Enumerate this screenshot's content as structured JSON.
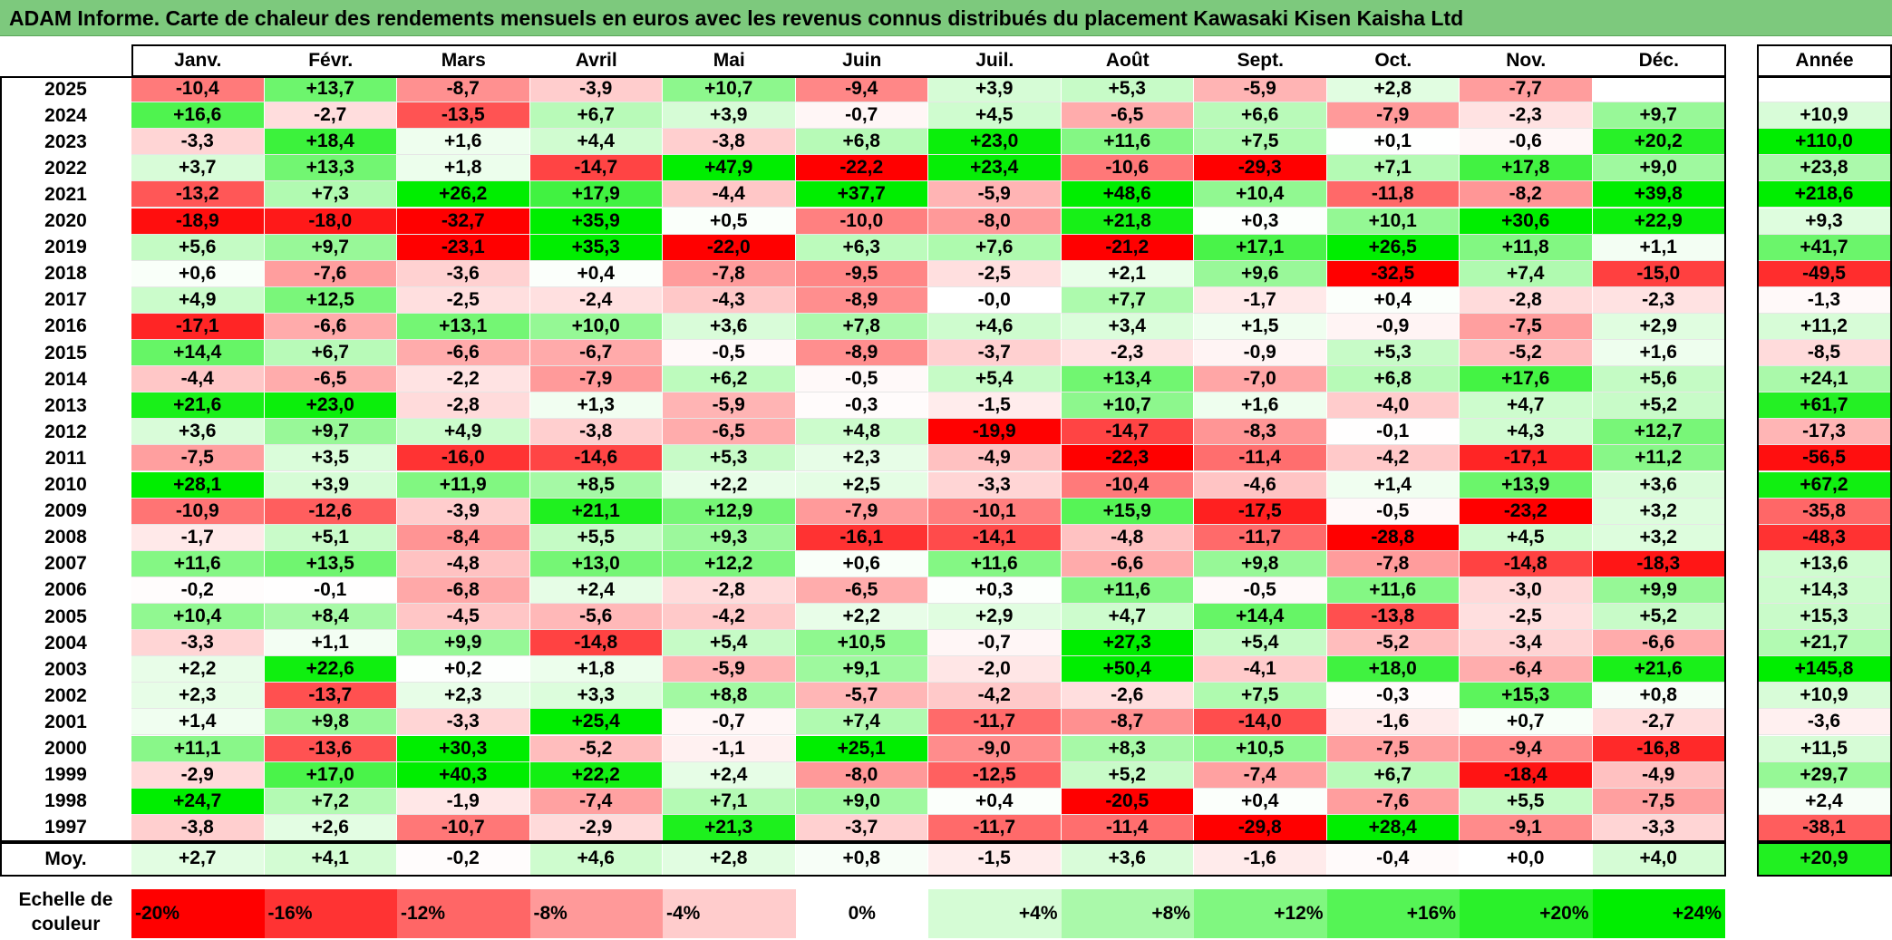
{
  "title": "ADAM Informe. Carte de chaleur des rendements mensuels en euros avec les revenus connus distribués du placement Kawasaki Kisen Kaisha Ltd",
  "chart_data": {
    "type": "heatmap",
    "title": "ADAM Informe. Carte de chaleur des rendements mensuels en euros avec les revenus connus distribués du placement Kawasaki Kisen Kaisha Ltd",
    "columns": [
      "Janv.",
      "Févr.",
      "Mars",
      "Avril",
      "Mai",
      "Juin",
      "Juil.",
      "Août",
      "Sept.",
      "Oct.",
      "Nov.",
      "Déc."
    ],
    "year_column_label": "Année",
    "rows": [
      {
        "year": "2025",
        "values": [
          "-10,4",
          "+13,7",
          "-8,7",
          "-3,9",
          "+10,7",
          "-9,4",
          "+3,9",
          "+5,3",
          "-5,9",
          "+2,8",
          "-7,7",
          ""
        ],
        "annual": ""
      },
      {
        "year": "2024",
        "values": [
          "+16,6",
          "-2,7",
          "-13,5",
          "+6,7",
          "+3,9",
          "-0,7",
          "+4,5",
          "-6,5",
          "+6,6",
          "-7,9",
          "-2,3",
          "+9,7"
        ],
        "annual": "+10,9"
      },
      {
        "year": "2023",
        "values": [
          "-3,3",
          "+18,4",
          "+1,6",
          "+4,4",
          "-3,8",
          "+6,8",
          "+23,0",
          "+11,6",
          "+7,5",
          "+0,1",
          "-0,6",
          "+20,2"
        ],
        "annual": "+110,0"
      },
      {
        "year": "2022",
        "values": [
          "+3,7",
          "+13,3",
          "+1,8",
          "-14,7",
          "+47,9",
          "-22,2",
          "+23,4",
          "-10,6",
          "-29,3",
          "+7,1",
          "+17,8",
          "+9,0"
        ],
        "annual": "+23,8"
      },
      {
        "year": "2021",
        "values": [
          "-13,2",
          "+7,3",
          "+26,2",
          "+17,9",
          "-4,4",
          "+37,7",
          "-5,9",
          "+48,6",
          "+10,4",
          "-11,8",
          "-8,2",
          "+39,8"
        ],
        "annual": "+218,6"
      },
      {
        "year": "2020",
        "values": [
          "-18,9",
          "-18,0",
          "-32,7",
          "+35,9",
          "+0,5",
          "-10,0",
          "-8,0",
          "+21,8",
          "+0,3",
          "+10,1",
          "+30,6",
          "+22,9"
        ],
        "annual": "+9,3"
      },
      {
        "year": "2019",
        "values": [
          "+5,6",
          "+9,7",
          "-23,1",
          "+35,3",
          "-22,0",
          "+6,3",
          "+7,6",
          "-21,2",
          "+17,1",
          "+26,5",
          "+11,8",
          "+1,1"
        ],
        "annual": "+41,7"
      },
      {
        "year": "2018",
        "values": [
          "+0,6",
          "-7,6",
          "-3,6",
          "+0,4",
          "-7,8",
          "-9,5",
          "-2,5",
          "+2,1",
          "+9,6",
          "-32,5",
          "+7,4",
          "-15,0"
        ],
        "annual": "-49,5"
      },
      {
        "year": "2017",
        "values": [
          "+4,9",
          "+12,5",
          "-2,5",
          "-2,4",
          "-4,3",
          "-8,9",
          "-0,0",
          "+7,7",
          "-1,7",
          "+0,4",
          "-2,8",
          "-2,3"
        ],
        "annual": "-1,3"
      },
      {
        "year": "2016",
        "values": [
          "-17,1",
          "-6,6",
          "+13,1",
          "+10,0",
          "+3,6",
          "+7,8",
          "+4,6",
          "+3,4",
          "+1,5",
          "-0,9",
          "-7,5",
          "+2,9"
        ],
        "annual": "+11,2"
      },
      {
        "year": "2015",
        "values": [
          "+14,4",
          "+6,7",
          "-6,6",
          "-6,7",
          "-0,5",
          "-8,9",
          "-3,7",
          "-2,3",
          "-0,9",
          "+5,3",
          "-5,2",
          "+1,6"
        ],
        "annual": "-8,5"
      },
      {
        "year": "2014",
        "values": [
          "-4,4",
          "-6,5",
          "-2,2",
          "-7,9",
          "+6,2",
          "-0,5",
          "+5,4",
          "+13,4",
          "-7,0",
          "+6,8",
          "+17,6",
          "+5,6"
        ],
        "annual": "+24,1"
      },
      {
        "year": "2013",
        "values": [
          "+21,6",
          "+23,0",
          "-2,8",
          "+1,3",
          "-5,9",
          "-0,3",
          "-1,5",
          "+10,7",
          "+1,6",
          "-4,0",
          "+4,7",
          "+5,2"
        ],
        "annual": "+61,7"
      },
      {
        "year": "2012",
        "values": [
          "+3,6",
          "+9,7",
          "+4,9",
          "-3,8",
          "-6,5",
          "+4,8",
          "-19,9",
          "-14,7",
          "-8,3",
          "-0,1",
          "+4,3",
          "+12,7"
        ],
        "annual": "-17,3"
      },
      {
        "year": "2011",
        "values": [
          "-7,5",
          "+3,5",
          "-16,0",
          "-14,6",
          "+5,3",
          "+2,3",
          "-4,9",
          "-22,3",
          "-11,4",
          "-4,2",
          "-17,1",
          "+11,2"
        ],
        "annual": "-56,5"
      },
      {
        "year": "2010",
        "values": [
          "+28,1",
          "+3,9",
          "+11,9",
          "+8,5",
          "+2,2",
          "+2,5",
          "-3,3",
          "-10,4",
          "-4,6",
          "+1,4",
          "+13,9",
          "+3,6"
        ],
        "annual": "+67,2"
      },
      {
        "year": "2009",
        "values": [
          "-10,9",
          "-12,6",
          "-3,9",
          "+21,1",
          "+12,9",
          "-7,9",
          "-10,1",
          "+15,9",
          "-17,5",
          "-0,5",
          "-23,2",
          "+3,2"
        ],
        "annual": "-35,8"
      },
      {
        "year": "2008",
        "values": [
          "-1,7",
          "+5,1",
          "-8,4",
          "+5,5",
          "+9,3",
          "-16,1",
          "-14,1",
          "-4,8",
          "-11,7",
          "-28,8",
          "+4,5",
          "+3,2"
        ],
        "annual": "-48,3"
      },
      {
        "year": "2007",
        "values": [
          "+11,6",
          "+13,5",
          "-4,8",
          "+13,0",
          "+12,2",
          "+0,6",
          "+11,6",
          "-6,6",
          "+9,8",
          "-7,8",
          "-14,8",
          "-18,3"
        ],
        "annual": "+13,6"
      },
      {
        "year": "2006",
        "values": [
          "-0,2",
          "-0,1",
          "-6,8",
          "+2,4",
          "-2,8",
          "-6,5",
          "+0,3",
          "+11,6",
          "-0,5",
          "+11,6",
          "-3,0",
          "+9,9"
        ],
        "annual": "+14,3"
      },
      {
        "year": "2005",
        "values": [
          "+10,4",
          "+8,4",
          "-4,5",
          "-5,6",
          "-4,2",
          "+2,2",
          "+2,9",
          "+4,7",
          "+14,4",
          "-13,8",
          "-2,5",
          "+5,2"
        ],
        "annual": "+15,3"
      },
      {
        "year": "2004",
        "values": [
          "-3,3",
          "+1,1",
          "+9,9",
          "-14,8",
          "+5,4",
          "+10,5",
          "-0,7",
          "+27,3",
          "+5,4",
          "-5,2",
          "-3,4",
          "-6,6"
        ],
        "annual": "+21,7"
      },
      {
        "year": "2003",
        "values": [
          "+2,2",
          "+22,6",
          "+0,2",
          "+1,8",
          "-5,9",
          "+9,1",
          "-2,0",
          "+50,4",
          "-4,1",
          "+18,0",
          "-6,4",
          "+21,6"
        ],
        "annual": "+145,8"
      },
      {
        "year": "2002",
        "values": [
          "+2,3",
          "-13,7",
          "+2,3",
          "+3,3",
          "+8,8",
          "-5,7",
          "-4,2",
          "-2,6",
          "+7,5",
          "-0,3",
          "+15,3",
          "+0,8"
        ],
        "annual": "+10,9"
      },
      {
        "year": "2001",
        "values": [
          "+1,4",
          "+9,8",
          "-3,3",
          "+25,4",
          "-0,7",
          "+7,4",
          "-11,7",
          "-8,7",
          "-14,0",
          "-1,6",
          "+0,7",
          "-2,7"
        ],
        "annual": "-3,6"
      },
      {
        "year": "2000",
        "values": [
          "+11,1",
          "-13,6",
          "+30,3",
          "-5,2",
          "-1,1",
          "+25,1",
          "-9,0",
          "+8,3",
          "+10,5",
          "-7,5",
          "-9,4",
          "-16,8"
        ],
        "annual": "+11,5"
      },
      {
        "year": "1999",
        "values": [
          "-2,9",
          "+17,0",
          "+40,3",
          "+22,2",
          "+2,4",
          "-8,0",
          "-12,5",
          "+5,2",
          "-7,4",
          "+6,7",
          "-18,4",
          "-4,9"
        ],
        "annual": "+29,7"
      },
      {
        "year": "1998",
        "values": [
          "+24,7",
          "+7,2",
          "-1,9",
          "-7,4",
          "+7,1",
          "+9,0",
          "+0,4",
          "-20,5",
          "+0,4",
          "-7,6",
          "+5,5",
          "-7,5"
        ],
        "annual": "+2,4"
      },
      {
        "year": "1997",
        "values": [
          "-3,8",
          "+2,6",
          "-10,7",
          "-2,9",
          "+21,3",
          "-3,7",
          "-11,7",
          "-11,4",
          "-29,8",
          "+28,4",
          "-9,1",
          "-3,3"
        ],
        "annual": "-38,1"
      }
    ],
    "average": {
      "label": "Moy.",
      "values": [
        "+2,7",
        "+4,1",
        "-0,2",
        "+4,6",
        "+2,8",
        "+0,8",
        "-1,5",
        "+3,6",
        "-1,6",
        "-0,4",
        "+0,0",
        "+4,0"
      ],
      "annual": "+20,9"
    },
    "legend": {
      "label": "Echelle de couleur",
      "stops": [
        {
          "label": "-20%",
          "value": -20
        },
        {
          "label": "-16%",
          "value": -16
        },
        {
          "label": "-12%",
          "value": -12
        },
        {
          "label": "-8%",
          "value": -8
        },
        {
          "label": "-4%",
          "value": -4
        },
        {
          "label": "0%",
          "value": 0
        },
        {
          "label": "+4%",
          "value": 4
        },
        {
          "label": "+8%",
          "value": 8
        },
        {
          "label": "+12%",
          "value": 12
        },
        {
          "label": "+16%",
          "value": 16
        },
        {
          "label": "+20%",
          "value": 20
        },
        {
          "label": "+24%",
          "value": 24
        }
      ]
    },
    "colors": {
      "negative_max": "#ff0000",
      "zero": "#ffffff",
      "positive_max": "#00ee00",
      "title_bar": "#7dc97d"
    }
  }
}
